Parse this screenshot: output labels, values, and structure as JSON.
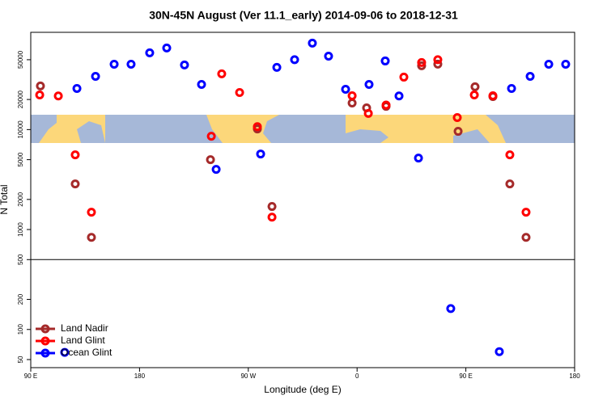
{
  "chart_data": {
    "type": "scatter",
    "title": "30N-45N August (Ver 11.1_early)   2014-09-06 to 2018-12-31",
    "x_label": "Longitude (deg E)",
    "y_label": "N Total",
    "xlim": [
      90,
      540
    ],
    "xticks": [
      {
        "value": 90,
        "label": "90 E"
      },
      {
        "value": 180,
        "label": "180"
      },
      {
        "value": 270,
        "label": "90 W"
      },
      {
        "value": 360,
        "label": "0"
      },
      {
        "value": 450,
        "label": "90 E"
      },
      {
        "value": 540,
        "label": "180"
      }
    ],
    "ylim": [
      41.5,
      94000
    ],
    "log_y": true,
    "yticks": [
      50,
      100,
      200,
      500,
      1000,
      2000,
      5000,
      10000,
      20000,
      50000
    ],
    "reference_line": 500,
    "legend": "bottomleft",
    "series": [
      {
        "name": "Land Nadir",
        "color": "#a52a2a",
        "x": [
          98.0,
          126.8,
          140.2,
          238.7,
          277.5,
          289.6,
          355.9,
          367.9,
          384.0,
          413.4,
          426.8,
          443.6,
          457.6,
          472.4,
          486.4,
          499.8
        ],
        "values": [
          27300,
          2860,
          835,
          5000,
          10150,
          1700,
          18440,
          16500,
          17100,
          43500,
          45200,
          9600,
          26800,
          21400,
          2860,
          835
        ]
      },
      {
        "name": "Land Glint",
        "color": "#ff0000",
        "x": [
          97.4,
          112.8,
          126.8,
          140.2,
          239.4,
          248.0,
          262.8,
          277.5,
          289.6,
          355.9,
          369.3,
          384.0,
          398.7,
          413.4,
          426.8,
          442.9,
          457.0,
          472.4,
          486.4,
          499.8
        ],
        "values": [
          22200,
          21700,
          5590,
          1490,
          8580,
          36100,
          23500,
          10700,
          1330,
          21800,
          14500,
          17600,
          33500,
          46900,
          50000,
          13200,
          22200,
          21800,
          5590,
          1490
        ]
      },
      {
        "name": "Ocean Glint",
        "color": "#0000ff",
        "x": [
          118.1,
          128.2,
          143.6,
          159.0,
          173.0,
          188.4,
          202.5,
          217.2,
          231.3,
          243.4,
          280.2,
          293.6,
          308.3,
          323.0,
          336.4,
          350.5,
          369.9,
          383.3,
          394.7,
          410.8,
          437.5,
          477.7,
          487.8,
          503.2,
          518.6,
          532.6
        ],
        "values": [
          59,
          25800,
          34100,
          45100,
          45100,
          58600,
          65500,
          44300,
          28300,
          4000,
          5700,
          41900,
          50000,
          73300,
          54300,
          25300,
          28300,
          48600,
          21700,
          5190,
          162,
          60,
          25800,
          34100,
          45100,
          45100
        ]
      }
    ]
  }
}
